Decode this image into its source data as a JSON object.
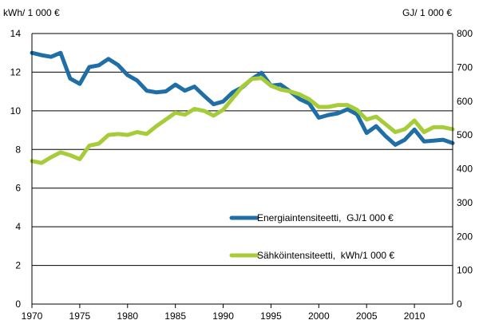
{
  "chart_data": {
    "type": "line",
    "title": "",
    "xlabel": "",
    "y_left": {
      "unit": "kWh/ 1 000 €",
      "range": [
        0,
        14
      ],
      "ticks": [
        "0",
        "2",
        "4",
        "6",
        "8",
        "10",
        "12",
        "14"
      ]
    },
    "y_right": {
      "unit": "GJ/ 1 000 €",
      "range": [
        0,
        800
      ],
      "ticks": [
        "0",
        "100",
        "200",
        "300",
        "400",
        "500",
        "600",
        "700",
        "800"
      ]
    },
    "x_range": [
      1970,
      2014
    ],
    "x_ticks": [
      "1970",
      "1975",
      "1980",
      "1985",
      "1990",
      "1995",
      "2000",
      "2005",
      "2010"
    ],
    "grid": "horizontal",
    "legend_position": "center-right",
    "series": [
      {
        "name": "Energiaintensiteetti,  GJ/1 000 €",
        "color": "#1f6fa6",
        "axis": "right",
        "x": [
          1970,
          1971,
          1972,
          1973,
          1974,
          1975,
          1976,
          1977,
          1978,
          1979,
          1980,
          1981,
          1982,
          1983,
          1984,
          1985,
          1986,
          1987,
          1988,
          1989,
          1990,
          1991,
          1992,
          1993,
          1994,
          1995,
          1996,
          1997,
          1998,
          1999,
          2000,
          2001,
          2002,
          2003,
          2004,
          2005,
          2006,
          2007,
          2008,
          2009,
          2010,
          2011,
          2012,
          2013,
          2014
        ],
        "values": [
          743,
          736,
          731,
          743,
          667,
          651,
          701,
          706,
          725,
          707,
          677,
          661,
          631,
          626,
          629,
          649,
          631,
          643,
          616,
          591,
          599,
          626,
          641,
          666,
          684,
          646,
          649,
          629,
          606,
          593,
          551,
          559,
          564,
          576,
          561,
          506,
          526,
          496,
          471,
          486,
          516,
          481,
          483,
          486,
          476
        ]
      },
      {
        "name": "Sähköintensiteetti,  kWh/1 000 €",
        "color": "#a6cc3a",
        "axis": "left",
        "x": [
          1970,
          1971,
          1972,
          1973,
          1974,
          1975,
          1976,
          1977,
          1978,
          1979,
          1980,
          1981,
          1982,
          1983,
          1984,
          1985,
          1986,
          1987,
          1988,
          1989,
          1990,
          1991,
          1992,
          1993,
          1994,
          1995,
          1996,
          1997,
          1998,
          1999,
          2000,
          2001,
          2002,
          2003,
          2004,
          2005,
          2006,
          2007,
          2008,
          2009,
          2010,
          2011,
          2012,
          2013,
          2014
        ],
        "values": [
          7.4,
          7.3,
          7.6,
          7.85,
          7.7,
          7.5,
          8.2,
          8.3,
          8.75,
          8.8,
          8.75,
          8.9,
          8.8,
          9.2,
          9.55,
          9.9,
          9.8,
          10.1,
          10.0,
          9.75,
          10.05,
          10.65,
          11.25,
          11.65,
          11.7,
          11.3,
          11.1,
          11.0,
          10.85,
          10.6,
          10.2,
          10.2,
          10.3,
          10.3,
          10.05,
          9.55,
          9.7,
          9.3,
          8.9,
          9.05,
          9.5,
          8.9,
          9.15,
          9.15,
          9.05
        ]
      }
    ]
  }
}
